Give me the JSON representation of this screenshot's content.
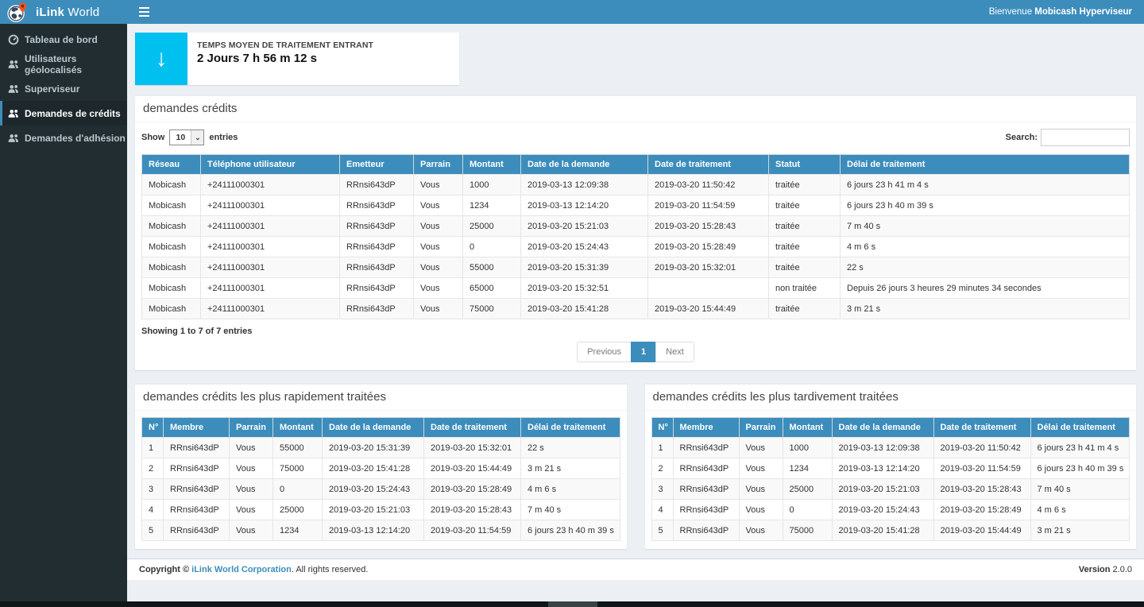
{
  "colors": {
    "navbar_blue": "#3c8dbc",
    "sidebar_dark": "#222d32",
    "stat_cyan": "#00c0ef",
    "content_bg": "#ecf0f5"
  },
  "brand": {
    "bold": "iLink",
    "light": "World"
  },
  "topbar": {
    "welcome_prefix": "Bienvenue ",
    "welcome_user": "Mobicash Hyperviseur"
  },
  "sidebar": {
    "items": [
      {
        "label": "Tableau de bord",
        "icon": "dashboard-icon",
        "active": false
      },
      {
        "label": "Utilisateurs géolocalisés",
        "icon": "users-icon",
        "active": false
      },
      {
        "label": "Superviseur",
        "icon": "users-icon",
        "active": false
      },
      {
        "label": "Demandes de crédits",
        "icon": "users-icon",
        "active": true
      },
      {
        "label": "Demandes d'adhésion",
        "icon": "users-icon",
        "active": false
      }
    ]
  },
  "stat_card": {
    "label": "TEMPS MOYEN DE TRAITEMENT ENTRANT",
    "value": "2 Jours 7 h 56 m 12 s",
    "icon": "arrow-down-icon",
    "arrow_glyph": "↓"
  },
  "credits_box": {
    "title": "demandes crédits",
    "show_label": "Show",
    "page_length": "10",
    "entries_label": "entries",
    "search_label": "Search:",
    "columns": [
      "Réseau",
      "Téléphone utilisateur",
      "Emetteur",
      "Parrain",
      "Montant",
      "Date de la demande",
      "Date de traitement",
      "Statut",
      "Délai de traitement"
    ],
    "rows": [
      [
        "Mobicash",
        "+24111000301",
        "RRnsi643dP",
        "Vous",
        "1000",
        "2019-03-13 12:09:38",
        "2019-03-20 11:50:42",
        "traitée",
        "6 jours 23 h 41 m 4 s"
      ],
      [
        "Mobicash",
        "+24111000301",
        "RRnsi643dP",
        "Vous",
        "1234",
        "2019-03-13 12:14:20",
        "2019-03-20 11:54:59",
        "traitée",
        "6 jours 23 h 40 m 39 s"
      ],
      [
        "Mobicash",
        "+24111000301",
        "RRnsi643dP",
        "Vous",
        "25000",
        "2019-03-20 15:21:03",
        "2019-03-20 15:28:43",
        "traitée",
        "7 m 40 s"
      ],
      [
        "Mobicash",
        "+24111000301",
        "RRnsi643dP",
        "Vous",
        "0",
        "2019-03-20 15:24:43",
        "2019-03-20 15:28:49",
        "traitée",
        "4 m 6 s"
      ],
      [
        "Mobicash",
        "+24111000301",
        "RRnsi643dP",
        "Vous",
        "55000",
        "2019-03-20 15:31:39",
        "2019-03-20 15:32:01",
        "traitée",
        "22 s"
      ],
      [
        "Mobicash",
        "+24111000301",
        "RRnsi643dP",
        "Vous",
        "65000",
        "2019-03-20 15:32:51",
        "",
        "non traitée",
        "Depuis 26 jours 3 heures 29 minutes 34 secondes"
      ],
      [
        "Mobicash",
        "+24111000301",
        "RRnsi643dP",
        "Vous",
        "75000",
        "2019-03-20 15:41:28",
        "2019-03-20 15:44:49",
        "traitée",
        "3 m 21 s"
      ]
    ],
    "summary": "Showing 1 to 7 of 7 entries",
    "pagination": {
      "previous": "Previous",
      "page": "1",
      "next": "Next"
    }
  },
  "fastest_box": {
    "title": "demandes crédits les plus rapidement traitées",
    "columns": [
      "N°",
      "Membre",
      "Parrain",
      "Montant",
      "Date de la demande",
      "Date de traitement",
      "Délai de traitement"
    ],
    "rows": [
      [
        "1",
        "RRnsi643dP",
        "Vous",
        "55000",
        "2019-03-20 15:31:39",
        "2019-03-20 15:32:01",
        "22 s"
      ],
      [
        "2",
        "RRnsi643dP",
        "Vous",
        "75000",
        "2019-03-20 15:41:28",
        "2019-03-20 15:44:49",
        "3 m 21 s"
      ],
      [
        "3",
        "RRnsi643dP",
        "Vous",
        "0",
        "2019-03-20 15:24:43",
        "2019-03-20 15:28:49",
        "4 m 6 s"
      ],
      [
        "4",
        "RRnsi643dP",
        "Vous",
        "25000",
        "2019-03-20 15:21:03",
        "2019-03-20 15:28:43",
        "7 m 40 s"
      ],
      [
        "5",
        "RRnsi643dP",
        "Vous",
        "1234",
        "2019-03-13 12:14:20",
        "2019-03-20 11:54:59",
        "6 jours 23 h 40 m 39 s"
      ]
    ]
  },
  "latest_box": {
    "title": "demandes crédits les plus tardivement traitées",
    "columns": [
      "N°",
      "Membre",
      "Parrain",
      "Montant",
      "Date de la demande",
      "Date de traitement",
      "Délai de traitement"
    ],
    "rows": [
      [
        "1",
        "RRnsi643dP",
        "Vous",
        "1000",
        "2019-03-13 12:09:38",
        "2019-03-20 11:50:42",
        "6 jours 23 h 41 m 4 s"
      ],
      [
        "2",
        "RRnsi643dP",
        "Vous",
        "1234",
        "2019-03-13 12:14:20",
        "2019-03-20 11:54:59",
        "6 jours 23 h 40 m 39 s"
      ],
      [
        "3",
        "RRnsi643dP",
        "Vous",
        "25000",
        "2019-03-20 15:21:03",
        "2019-03-20 15:28:43",
        "7 m 40 s"
      ],
      [
        "4",
        "RRnsi643dP",
        "Vous",
        "0",
        "2019-03-20 15:24:43",
        "2019-03-20 15:28:49",
        "4 m 6 s"
      ],
      [
        "5",
        "RRnsi643dP",
        "Vous",
        "75000",
        "2019-03-20 15:41:28",
        "2019-03-20 15:44:49",
        "3 m 21 s"
      ]
    ]
  },
  "footer": {
    "copyright_prefix": "Copyright © ",
    "company": "iLink World Corporation",
    "suffix": ". All rights reserved.",
    "version_label": "Version",
    "version_value": "2.0.0"
  }
}
